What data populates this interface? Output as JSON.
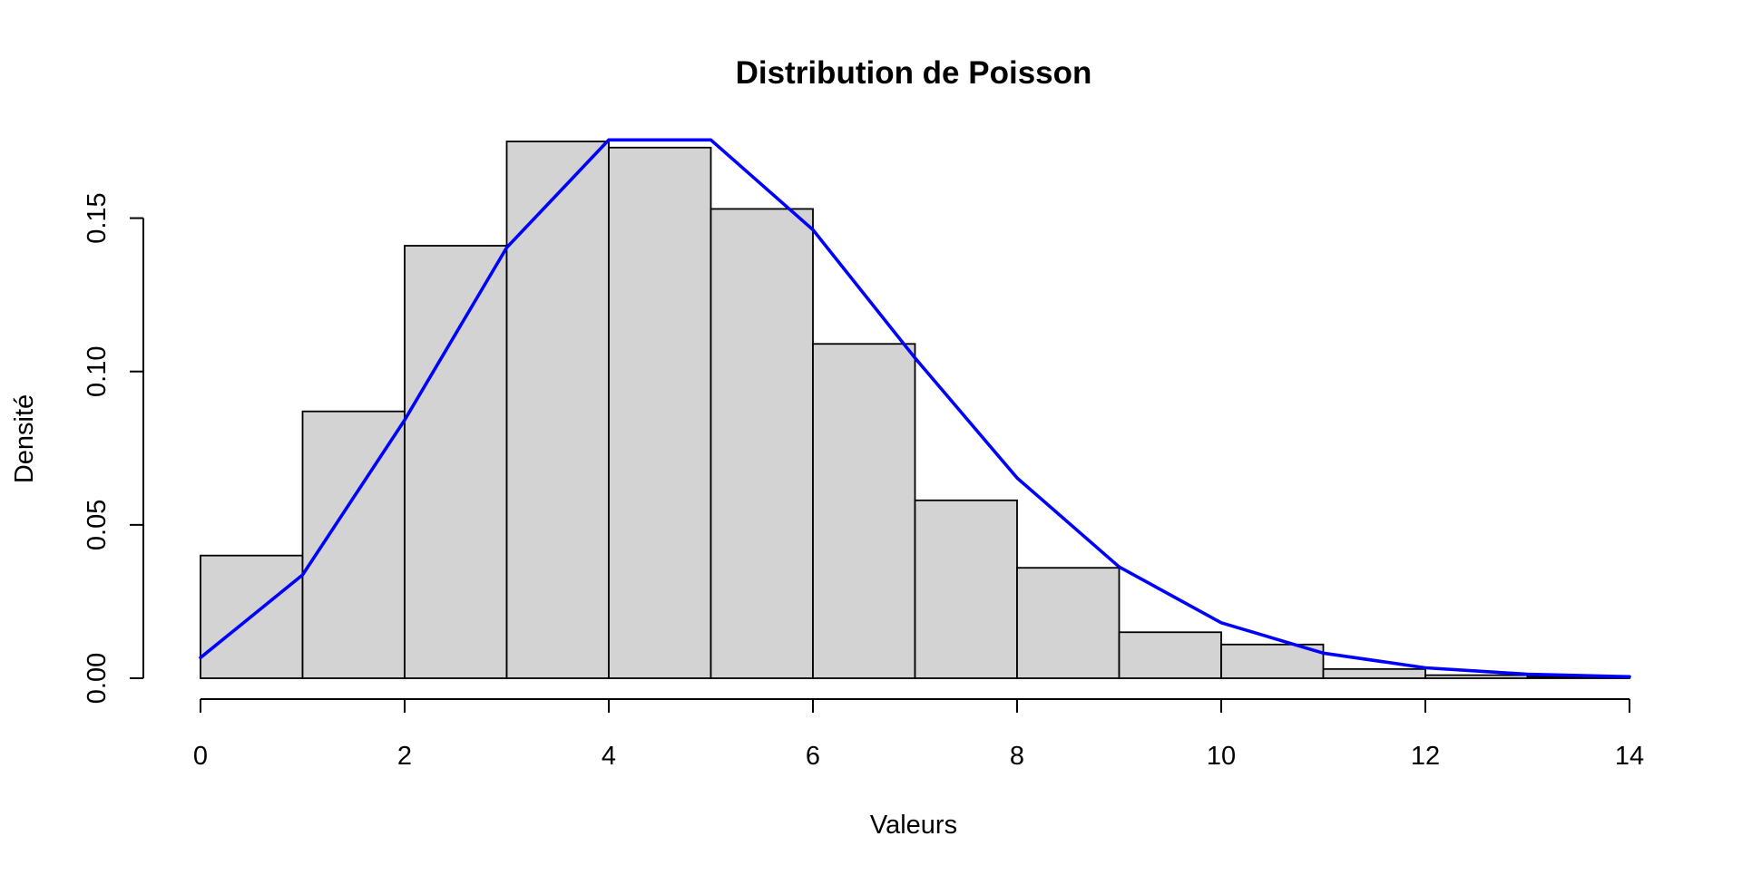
{
  "chart_data": {
    "type": "bar",
    "title": "Distribution de Poisson",
    "xlabel": "Valeurs",
    "ylabel": "Densité",
    "xlim": [
      0,
      14
    ],
    "ylim": [
      0,
      0.175
    ],
    "x_ticks": [
      "0",
      "2",
      "4",
      "6",
      "8",
      "10",
      "12",
      "14"
    ],
    "y_ticks": [
      "0.00",
      "0.05",
      "0.10",
      "0.15"
    ],
    "grid": false,
    "histogram": {
      "bins": [
        [
          0,
          1
        ],
        [
          1,
          2
        ],
        [
          2,
          3
        ],
        [
          3,
          4
        ],
        [
          4,
          5
        ],
        [
          5,
          6
        ],
        [
          6,
          7
        ],
        [
          7,
          8
        ],
        [
          8,
          9
        ],
        [
          9,
          10
        ],
        [
          10,
          11
        ],
        [
          11,
          12
        ],
        [
          12,
          13
        ],
        [
          13,
          14
        ]
      ],
      "density": [
        0.04,
        0.087,
        0.141,
        0.175,
        0.173,
        0.153,
        0.109,
        0.058,
        0.036,
        0.015,
        0.011,
        0.003,
        0.001,
        0.0005
      ],
      "fill_color": "#d3d3d3",
      "border_color": "#000000"
    },
    "series": [
      {
        "x": [
          0,
          1,
          2,
          3,
          4,
          5,
          6,
          7,
          8,
          9,
          10,
          11,
          12,
          13,
          14
        ],
        "values": [
          0.0067,
          0.0337,
          0.0842,
          0.1404,
          0.1755,
          0.1755,
          0.1462,
          0.1044,
          0.0653,
          0.0363,
          0.0181,
          0.0082,
          0.0034,
          0.0013,
          0.0005
        ],
        "color": "#0000ff",
        "type": "line"
      }
    ]
  }
}
